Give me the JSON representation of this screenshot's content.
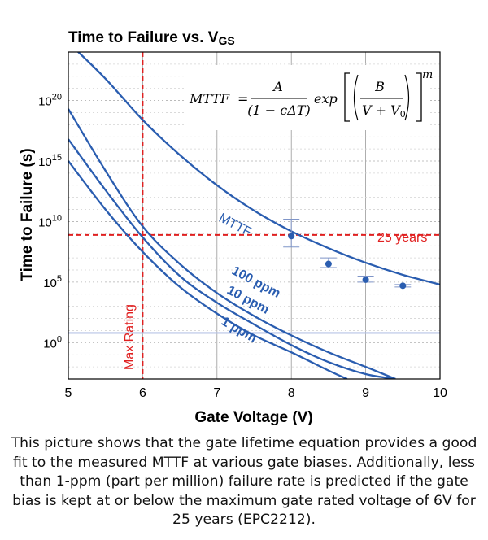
{
  "chart_data": {
    "type": "line",
    "title_main": "Time to Failure vs. V",
    "title_sub": "GS",
    "xlabel": "Gate Voltage (V)",
    "ylabel": "Time to Failure (s)",
    "xlim": [
      5,
      10
    ],
    "ylim_log10": [
      -3,
      24
    ],
    "y_scale": "log",
    "grid": true,
    "x_ticks": [
      5,
      6,
      7,
      8,
      9,
      10
    ],
    "y_ticks": [
      {
        "base": "10",
        "exp": "0",
        "value": 0
      },
      {
        "base": "10",
        "exp": "5",
        "value": 5
      },
      {
        "base": "10",
        "exp": "10",
        "value": 10
      },
      {
        "base": "10",
        "exp": "15",
        "value": 15
      },
      {
        "base": "10",
        "exp": "20",
        "value": 20
      }
    ],
    "formula": {
      "lhs": "MTTF",
      "numerator": "A",
      "denominator": "(1 − cΔT)",
      "func": "exp",
      "inner_num": "B",
      "inner_den": "V + V",
      "inner_den_sub": "0",
      "power": "m"
    },
    "series": [
      {
        "name": "MTTF",
        "color": "#2a5db0",
        "x": [
          5.1,
          5.5,
          6.0,
          6.5,
          7.0,
          7.5,
          8.0,
          8.5,
          9.0,
          9.5,
          10.0
        ],
        "log10_y": [
          24.2,
          21.8,
          18.4,
          15.5,
          13.0,
          10.9,
          9.2,
          7.8,
          6.6,
          5.6,
          4.8
        ]
      },
      {
        "name": "100 ppm",
        "color": "#2a5db0",
        "x": [
          5.0,
          5.5,
          6.0,
          6.5,
          7.0,
          7.5,
          8.0,
          8.5,
          9.0,
          9.4
        ],
        "log10_y": [
          19.3,
          14.2,
          9.6,
          6.5,
          4.1,
          2.2,
          0.6,
          -0.8,
          -2.0,
          -3.0
        ]
      },
      {
        "name": "10 ppm",
        "color": "#2a5db0",
        "x": [
          5.0,
          5.5,
          6.0,
          6.5,
          7.0,
          7.5,
          8.0,
          8.5,
          9.0,
          9.4
        ],
        "log10_y": [
          16.8,
          12.6,
          8.7,
          5.5,
          3.3,
          1.5,
          -0.2,
          -1.6,
          -2.6,
          -3.0
        ]
      },
      {
        "name": "1 ppm",
        "color": "#2a5db0",
        "x": [
          5.0,
          5.5,
          6.0,
          6.5,
          7.0,
          7.5,
          8.0,
          8.5,
          8.75
        ],
        "log10_y": [
          15.0,
          11.0,
          7.5,
          4.6,
          2.4,
          0.6,
          -0.8,
          -2.3,
          -3.0
        ]
      }
    ],
    "measured": {
      "x": [
        8.0,
        8.5,
        9.0,
        9.5
      ],
      "log10_y": [
        8.8,
        6.5,
        5.2,
        4.7
      ],
      "err_low": [
        7.9,
        6.2,
        5.0,
        4.6
      ],
      "err_high": [
        10.2,
        7.0,
        5.5,
        4.8
      ],
      "color": "#2a5db0"
    },
    "reference_lines": [
      {
        "orientation": "horizontal",
        "log10_y": 8.9,
        "label": "25 years",
        "color": "#e02020",
        "style": "dashed"
      },
      {
        "orientation": "vertical",
        "x": 6.0,
        "label": "Max Rating",
        "color": "#e02020",
        "style": "dashed"
      },
      {
        "orientation": "horizontal",
        "log10_y": 0.8,
        "label": "",
        "color": "#b8c4e6",
        "style": "solid"
      }
    ]
  },
  "caption": "This picture shows that the gate lifetime equation provides a good fit to the measured MTTF at various gate biases. Additionally, less than 1-ppm (part per million) failure rate is predicted if the gate bias is kept at or below the maximum gate rated voltage of 6V for 25 years (EPC2212)."
}
